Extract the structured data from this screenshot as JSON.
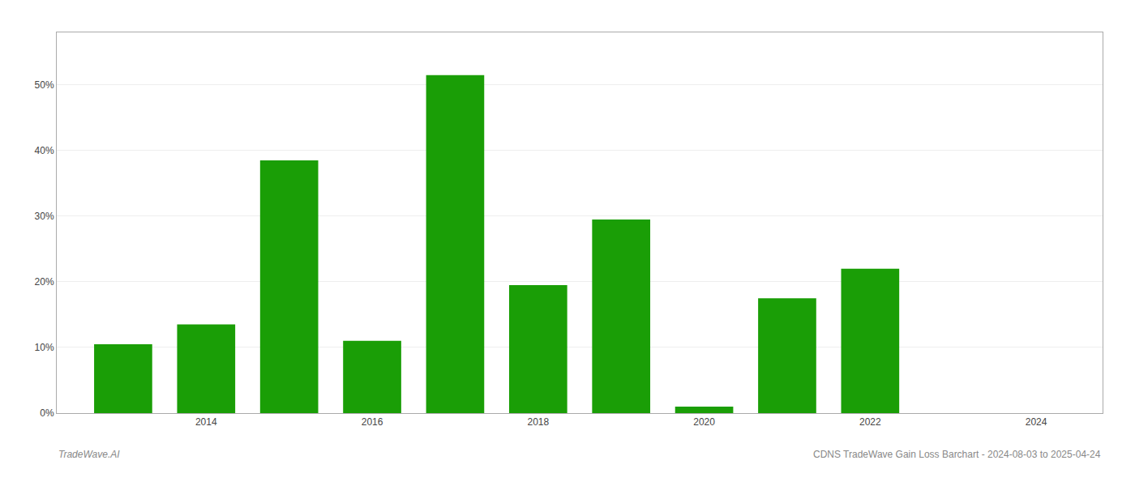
{
  "chart_data": {
    "type": "bar",
    "x": [
      2013,
      2014,
      2015,
      2016,
      2017,
      2018,
      2019,
      2020,
      2021,
      2022,
      2023
    ],
    "values": [
      10.5,
      13.5,
      38.5,
      11.0,
      51.5,
      19.5,
      29.5,
      1.0,
      17.5,
      22.0,
      0.0
    ],
    "color": "#1a9e06",
    "xlim": [
      2012.2,
      2024.8
    ],
    "xticks": [
      2014,
      2016,
      2018,
      2020,
      2022,
      2024
    ],
    "ylim": [
      0,
      58
    ],
    "yticks": [
      {
        "value": 0,
        "label": "0%"
      },
      {
        "value": 10,
        "label": "10%"
      },
      {
        "value": 20,
        "label": "20%"
      },
      {
        "value": 30,
        "label": "30%"
      },
      {
        "value": 40,
        "label": "40%"
      },
      {
        "value": 50,
        "label": "50%"
      }
    ],
    "grid": true,
    "annotations": [
      "TradeWave.AI",
      "CDNS TradeWave Gain Loss Barchart - 2024-08-03 to 2025-04-24"
    ]
  }
}
